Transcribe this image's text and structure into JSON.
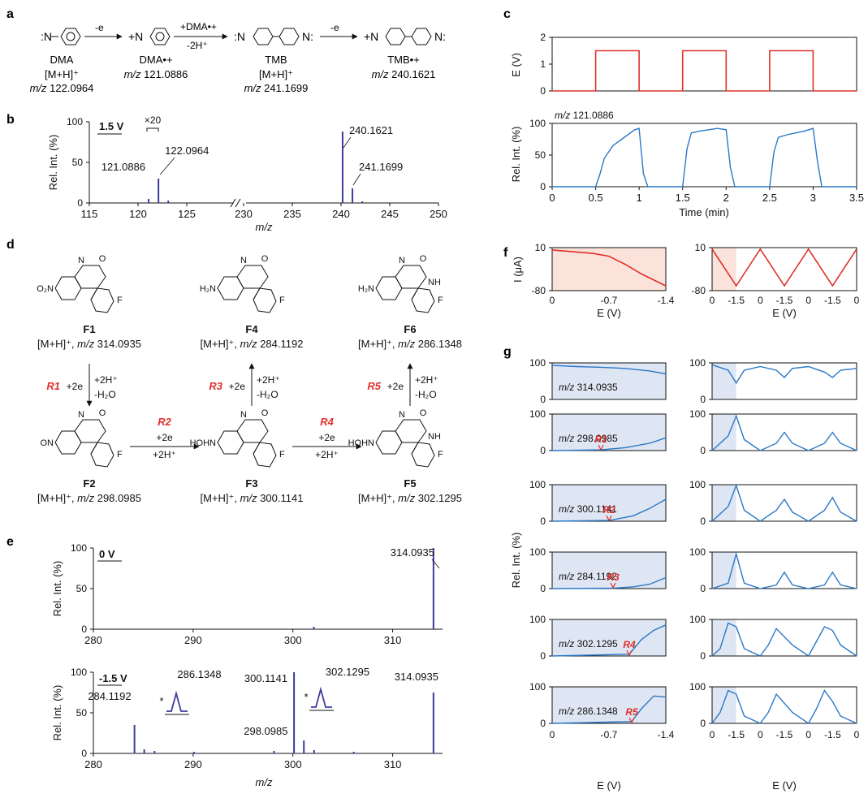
{
  "panel_labels": {
    "a": "a",
    "b": "b",
    "c": "c",
    "d": "d",
    "e": "e",
    "f": "f",
    "g": "g"
  },
  "scheme_a": {
    "arrow1": "-e",
    "arrow2_top": "+DMA•+",
    "arrow2_bottom": "-2H⁺",
    "arrow3": "-e",
    "compounds": [
      {
        "name": "DMA",
        "line2": "[M+H]⁺",
        "mz_label": "m/z",
        "mz": "122.0964"
      },
      {
        "name": "DMA•+",
        "line2": "",
        "mz_label": "m/z",
        "mz": "121.0886"
      },
      {
        "name": "TMB",
        "line2": "[M+H]⁺",
        "mz_label": "m/z",
        "mz": "241.1699"
      },
      {
        "name": "TMB•+",
        "line2": "",
        "mz_label": "m/z",
        "mz": "240.1621"
      }
    ]
  },
  "scheme_d": {
    "compounds": [
      {
        "id": "F1",
        "ion": "[M+H]⁺,",
        "mz_label": "m/z",
        "mz": "314.0935"
      },
      {
        "id": "F4",
        "ion": "[M+H]⁺,",
        "mz_label": "m/z",
        "mz": "284.1192"
      },
      {
        "id": "F6",
        "ion": "[M+H]⁺,",
        "mz_label": "m/z",
        "mz": "286.1348"
      },
      {
        "id": "F2",
        "ion": "[M+H]⁺,",
        "mz_label": "m/z",
        "mz": "298.0985"
      },
      {
        "id": "F3",
        "ion": "[M+H]⁺,",
        "mz_label": "m/z",
        "mz": "300.1141"
      },
      {
        "id": "F5",
        "ion": "[M+H]⁺,",
        "mz_label": "m/z",
        "mz": "302.1295"
      }
    ],
    "reactions": [
      {
        "id": "R1",
        "left": "+2e",
        "right1": "+2H⁺",
        "right2": "-H₂O"
      },
      {
        "id": "R3",
        "left": "+2e",
        "right1": "+2H⁺",
        "right2": "-H₂O"
      },
      {
        "id": "R5",
        "left": "+2e",
        "right1": "+2H⁺",
        "right2": "-H₂O"
      },
      {
        "id": "R2",
        "top": "+2e",
        "bottom": "+2H⁺"
      },
      {
        "id": "R4",
        "top": "+2e",
        "bottom": "+2H⁺"
      }
    ],
    "groups": {
      "nitro": "O₂N",
      "amino": "H₂N",
      "nitroso": "ON",
      "hydroxylamine": "HOHN",
      "fluoro": "F",
      "nh": "NH",
      "carbonyl": "O",
      "n": "N"
    }
  },
  "colors": {
    "red": "#e0302a",
    "blue_line": "#2a78c8",
    "navy": "#3c3c9e",
    "shade_blue": "#dfe6f3",
    "shade_red": "#fbe2da"
  },
  "chart_data": [
    {
      "id": "b",
      "type": "bar",
      "note": "1.5 V",
      "zoom_note": "×20",
      "xlabel": "m/z",
      "ylabel": "Rel. Int. (%)",
      "x_segments": [
        [
          115,
          130
        ],
        [
          230,
          250
        ]
      ],
      "x_ticks": [
        "115",
        "120",
        "125",
        "230",
        "235",
        "240",
        "245",
        "250"
      ],
      "ylim": [
        0,
        100
      ],
      "y_ticks": [
        "0",
        "50",
        "100"
      ],
      "x": [
        121.0886,
        122.0964,
        123.1,
        240.1621,
        241.1699,
        242.17
      ],
      "y": [
        5,
        30,
        3,
        88,
        18,
        2
      ],
      "labels": [
        "121.0886",
        "122.0964",
        "240.1621",
        "241.1699"
      ]
    },
    {
      "id": "c_top",
      "type": "line",
      "ylabel": "E (V)",
      "xlim": [
        0,
        3.5
      ],
      "ylim": [
        0,
        2
      ],
      "y_ticks": [
        "0",
        "1",
        "2"
      ],
      "x": [
        0,
        0.5,
        0.5,
        1,
        1,
        1.5,
        1.5,
        2,
        2,
        2.5,
        2.5,
        3,
        3,
        3.5
      ],
      "y": [
        0,
        0,
        1.5,
        1.5,
        0,
        0,
        1.5,
        1.5,
        0,
        0,
        1.5,
        1.5,
        0,
        0
      ]
    },
    {
      "id": "c_bottom",
      "type": "line",
      "trace_label": "m/z 121.0886",
      "xlabel": "Time (min)",
      "ylabel": "Rel. Int. (%)",
      "xlim": [
        0,
        3.5
      ],
      "ylim": [
        0,
        100
      ],
      "x_ticks": [
        "0",
        "0.5",
        "1",
        "1.5",
        "2",
        "2.5",
        "3",
        "3.5"
      ],
      "y_ticks": [
        "0",
        "50",
        "100"
      ],
      "x": [
        0,
        0.5,
        0.55,
        0.6,
        0.7,
        0.8,
        0.9,
        0.95,
        1.0,
        1.05,
        1.1,
        1.5,
        1.55,
        1.6,
        1.7,
        1.8,
        1.9,
        2.0,
        2.05,
        2.1,
        2.5,
        2.55,
        2.6,
        2.7,
        2.8,
        2.9,
        3.0,
        3.05,
        3.1,
        3.5
      ],
      "y": [
        0,
        0,
        20,
        45,
        65,
        75,
        85,
        90,
        92,
        20,
        0,
        0,
        60,
        85,
        88,
        90,
        92,
        90,
        30,
        0,
        0,
        55,
        78,
        82,
        85,
        88,
        92,
        40,
        0,
        0
      ]
    },
    {
      "id": "e_top",
      "type": "bar",
      "note": "0 V",
      "ylabel": "Rel. Int. (%)",
      "xlim": [
        280,
        315
      ],
      "ylim": [
        0,
        100
      ],
      "x_ticks": [
        "280",
        "290",
        "300",
        "310"
      ],
      "y_ticks": [
        "0",
        "50",
        "100"
      ],
      "x": [
        302.1,
        314.0935
      ],
      "y": [
        3,
        100
      ],
      "labels": [
        "314.0935"
      ]
    },
    {
      "id": "e_bottom",
      "type": "bar",
      "note": "-1.5 V",
      "xlabel": "m/z",
      "ylabel": "Rel. Int. (%)",
      "xlim": [
        280,
        315
      ],
      "ylim": [
        0,
        100
      ],
      "x_ticks": [
        "280",
        "290",
        "300",
        "310"
      ],
      "y_ticks": [
        "0",
        "50",
        "100"
      ],
      "x": [
        284.1192,
        285.1,
        286.1348,
        290.1,
        298.0985,
        300.1141,
        301.1,
        302.1295,
        306.1,
        314.0935
      ],
      "y": [
        35,
        5,
        3,
        2,
        3,
        100,
        16,
        4,
        2,
        75
      ],
      "labels": [
        "284.1192",
        "286.1348",
        "298.0985",
        "300.1141",
        "302.1295",
        "314.0935"
      ],
      "insets": [
        {
          "label": "286.1348",
          "star": "*"
        },
        {
          "label": "302.1295",
          "star": "*"
        }
      ]
    },
    {
      "id": "f_left",
      "type": "line",
      "xlabel": "E (V)",
      "ylabel": "I (μA)",
      "x_ticks": [
        "0",
        "-0.7",
        "-1.4"
      ],
      "y_ticks": [
        "10",
        "-80"
      ],
      "x": [
        0,
        -0.5,
        -0.7,
        -0.9,
        -1.1,
        -1.4
      ],
      "y": [
        5,
        -2,
        -8,
        -25,
        -45,
        -70
      ]
    },
    {
      "id": "f_right",
      "type": "line",
      "xlabel": "E (V)",
      "x_ticks": [
        "0",
        "-1.5",
        "0",
        "-1.5",
        "0",
        "-1.5",
        "0"
      ],
      "y_ticks": [
        "10",
        "-80"
      ],
      "x": [
        0,
        1.5,
        3,
        4.5,
        6,
        7.5,
        9
      ],
      "y": [
        7,
        -70,
        7,
        -70,
        7,
        -70,
        7
      ]
    },
    {
      "id": "g",
      "type": "line",
      "ylabel": "Rel. Int. (%)",
      "xlabel": "E (V)",
      "left_x_ticks": [
        "0",
        "-0.7",
        "-1.4"
      ],
      "right_x_ticks": [
        "0",
        "-1.5",
        "0",
        "-1.5",
        "0",
        "-1.5",
        "0"
      ],
      "y_ticks": [
        "0",
        "100"
      ],
      "series": [
        {
          "label": "m/z 314.0935",
          "marker": "",
          "onset": null,
          "left_x": [
            0,
            0.3,
            0.6,
            0.9,
            1.2,
            1.4
          ],
          "left_y": [
            93,
            90,
            88,
            85,
            78,
            70
          ],
          "right_x": [
            0,
            1,
            1.5,
            2,
            3,
            4,
            4.5,
            5,
            6,
            7,
            7.5,
            8,
            9
          ],
          "right_y": [
            95,
            80,
            45,
            80,
            90,
            80,
            60,
            85,
            90,
            75,
            60,
            80,
            85
          ]
        },
        {
          "label": "m/z 298.0985",
          "marker": "R1",
          "onset": 0.6,
          "left_x": [
            0,
            0.6,
            0.9,
            1.2,
            1.4
          ],
          "left_y": [
            0,
            2,
            8,
            20,
            35
          ],
          "right_x": [
            0,
            1,
            1.5,
            2,
            3,
            4,
            4.5,
            5,
            6,
            7,
            7.5,
            8,
            9
          ],
          "right_y": [
            0,
            40,
            95,
            30,
            0,
            20,
            50,
            20,
            0,
            20,
            50,
            20,
            0
          ]
        },
        {
          "label": "m/z 300.1141",
          "marker": "R2",
          "onset": 0.7,
          "left_x": [
            0,
            0.7,
            1.0,
            1.2,
            1.4
          ],
          "left_y": [
            0,
            2,
            15,
            35,
            60
          ],
          "right_x": [
            0,
            1,
            1.5,
            2,
            3,
            4,
            4.5,
            5,
            6,
            7,
            7.5,
            8,
            9
          ],
          "right_y": [
            0,
            40,
            98,
            30,
            0,
            30,
            60,
            25,
            0,
            30,
            65,
            25,
            0
          ]
        },
        {
          "label": "m/z 284.1192",
          "marker": "R3",
          "onset": 0.75,
          "left_x": [
            0,
            0.75,
            1.0,
            1.2,
            1.4
          ],
          "left_y": [
            0,
            1,
            5,
            12,
            30
          ],
          "right_x": [
            0,
            1,
            1.5,
            2,
            3,
            4,
            4.5,
            5,
            6,
            7,
            7.5,
            8,
            9
          ],
          "right_y": [
            0,
            15,
            95,
            15,
            0,
            10,
            45,
            10,
            0,
            10,
            45,
            10,
            0
          ]
        },
        {
          "label": "m/z 302.1295",
          "marker": "R4",
          "onset": 0.95,
          "left_x": [
            0,
            0.95,
            1.1,
            1.25,
            1.4
          ],
          "left_y": [
            0,
            5,
            45,
            70,
            85
          ],
          "right_x": [
            0,
            0.5,
            1,
            1.5,
            2,
            3,
            3.5,
            4,
            5,
            6,
            6.5,
            7,
            7.5,
            8,
            9
          ],
          "right_y": [
            0,
            20,
            90,
            80,
            20,
            0,
            30,
            75,
            30,
            0,
            40,
            80,
            70,
            30,
            0
          ]
        },
        {
          "label": "m/z 286.1348",
          "marker": "R5",
          "onset": 0.98,
          "left_x": [
            0,
            0.98,
            1.1,
            1.25,
            1.4
          ],
          "left_y": [
            0,
            5,
            40,
            75,
            72
          ],
          "right_x": [
            0,
            0.5,
            1,
            1.5,
            2,
            3,
            3.5,
            4,
            5,
            6,
            6.5,
            7,
            7.5,
            8,
            9
          ],
          "right_y": [
            0,
            30,
            90,
            80,
            20,
            0,
            30,
            80,
            30,
            0,
            40,
            90,
            60,
            20,
            0
          ]
        }
      ]
    }
  ]
}
